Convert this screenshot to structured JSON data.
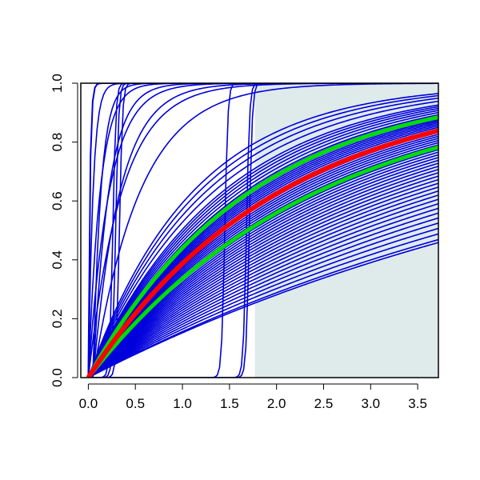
{
  "chart_data": {
    "type": "line",
    "title": "",
    "xlabel": "",
    "ylabel": "",
    "xlim": [
      -0.08,
      3.72
    ],
    "ylim": [
      0.0,
      1.0
    ],
    "grid": false,
    "x_ticks": [
      "0.0",
      "0.5",
      "1.0",
      "1.5",
      "2.0",
      "2.5",
      "3.0",
      "3.5"
    ],
    "y_ticks": [
      "0.0",
      "0.2",
      "0.4",
      "0.6",
      "0.8",
      "1.0"
    ],
    "shaded_region": {
      "x_from": 1.77,
      "x_to": 3.72,
      "y_from": 0.0,
      "y_to": 1.0,
      "color": "#dfeaea"
    },
    "colors": {
      "ensemble": "#0000dd",
      "mean": "#ff0000",
      "band": "#00dd00",
      "frame": "#000000"
    },
    "ensemble_rates": [
      0.165,
      0.17,
      0.18,
      0.19,
      0.2,
      0.21,
      0.22,
      0.23,
      0.24,
      0.25,
      0.26,
      0.27,
      0.28,
      0.29,
      0.3,
      0.31,
      0.32,
      0.33,
      0.34,
      0.35,
      0.36,
      0.37,
      0.38,
      0.39,
      0.4,
      0.41,
      0.42,
      0.43,
      0.44,
      0.45,
      0.46,
      0.47,
      0.48,
      0.49,
      0.5,
      0.51,
      0.52,
      0.53,
      0.54,
      0.55,
      0.56,
      0.57,
      0.58,
      0.59,
      0.6,
      0.62,
      0.64,
      0.66,
      0.68,
      0.7,
      0.75,
      0.8,
      0.85,
      0.9
    ],
    "ensemble_fast_rates": [
      2.0,
      2.8,
      3.5,
      4.5,
      6.0,
      8.0,
      12.0,
      20.0
    ],
    "ensemble_steps": [
      0.26,
      0.29,
      0.33,
      1.45,
      1.68,
      1.71
    ],
    "mean_rate": 0.49,
    "band_rates": [
      0.41,
      0.58
    ]
  }
}
